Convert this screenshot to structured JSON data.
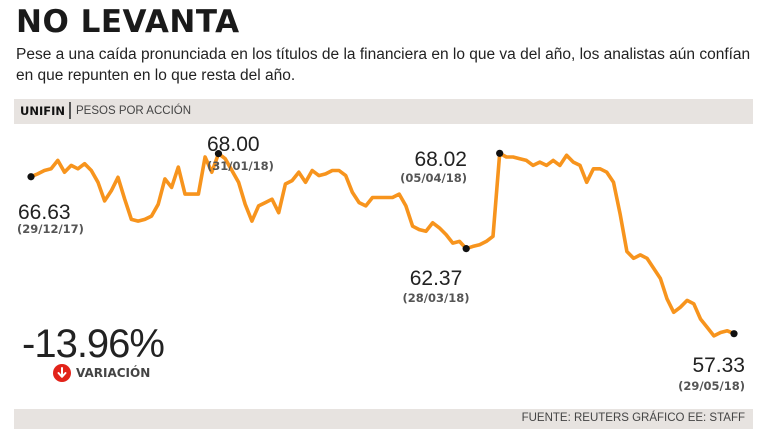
{
  "header": {
    "title": "NO LEVANTA",
    "subtitle": "Pese a una caída pronunciada en los títulos de la financiera en lo que va del año, los analistas aún confían en que repunten en lo que resta del año."
  },
  "band": {
    "ticker": "UNIFIN",
    "unit": "PESOS POR ACCIÓN"
  },
  "summary": {
    "change": "-13.96%",
    "change_label": "VARIACIÓN",
    "icon": "down-arrow-icon"
  },
  "footer": {
    "source": "FUENTE: REUTERS GRÁFICO EE: STAFF"
  },
  "colors": {
    "line": "#f7941d",
    "band": "#e7e3e0",
    "down": "#e2231a"
  },
  "chart_data": {
    "type": "line",
    "title": "UNIFIN",
    "ylabel": "Pesos por acción",
    "ylim": [
      55,
      71
    ],
    "series": [
      {
        "name": "UNIFIN",
        "values": [
          66.63,
          66.8,
          67.0,
          67.1,
          67.6,
          66.9,
          67.3,
          67.1,
          67.4,
          67.0,
          66.3,
          65.2,
          65.8,
          66.6,
          65.3,
          64.1,
          64.0,
          64.1,
          64.3,
          65.0,
          66.5,
          66.0,
          67.2,
          65.6,
          65.6,
          65.6,
          67.8,
          66.9,
          68.0,
          67.7,
          67.0,
          66.3,
          65.0,
          64.0,
          64.9,
          65.1,
          65.3,
          64.5,
          66.2,
          66.4,
          66.9,
          66.3,
          67.0,
          66.7,
          66.8,
          67.0,
          67.0,
          66.7,
          65.7,
          65.1,
          64.9,
          65.4,
          65.4,
          65.4,
          65.4,
          65.6,
          64.9,
          63.7,
          63.5,
          63.4,
          63.9,
          63.6,
          63.2,
          62.7,
          62.8,
          62.37,
          62.5,
          62.6,
          62.8,
          63.1,
          68.02,
          67.8,
          67.8,
          67.7,
          67.6,
          67.3,
          67.5,
          67.3,
          67.6,
          67.3,
          67.9,
          67.5,
          67.3,
          66.3,
          67.1,
          67.1,
          66.9,
          66.3,
          64.4,
          62.2,
          61.8,
          62.0,
          61.8,
          61.2,
          60.6,
          59.4,
          58.6,
          58.9,
          59.3,
          59.1,
          58.2,
          57.7,
          57.2,
          57.4,
          57.5,
          57.33
        ]
      }
    ],
    "annotations": [
      {
        "value": "66.63",
        "date": "(29/12/17)",
        "index": 0
      },
      {
        "value": "68.00",
        "date": "(31/01/18)",
        "index": 28
      },
      {
        "value": "62.37",
        "date": "(28/03/18)",
        "index": 65
      },
      {
        "value": "68.02",
        "date": "(05/04/18)",
        "index": 70
      },
      {
        "value": "57.33",
        "date": "(29/05/18)",
        "index": 105
      }
    ]
  }
}
